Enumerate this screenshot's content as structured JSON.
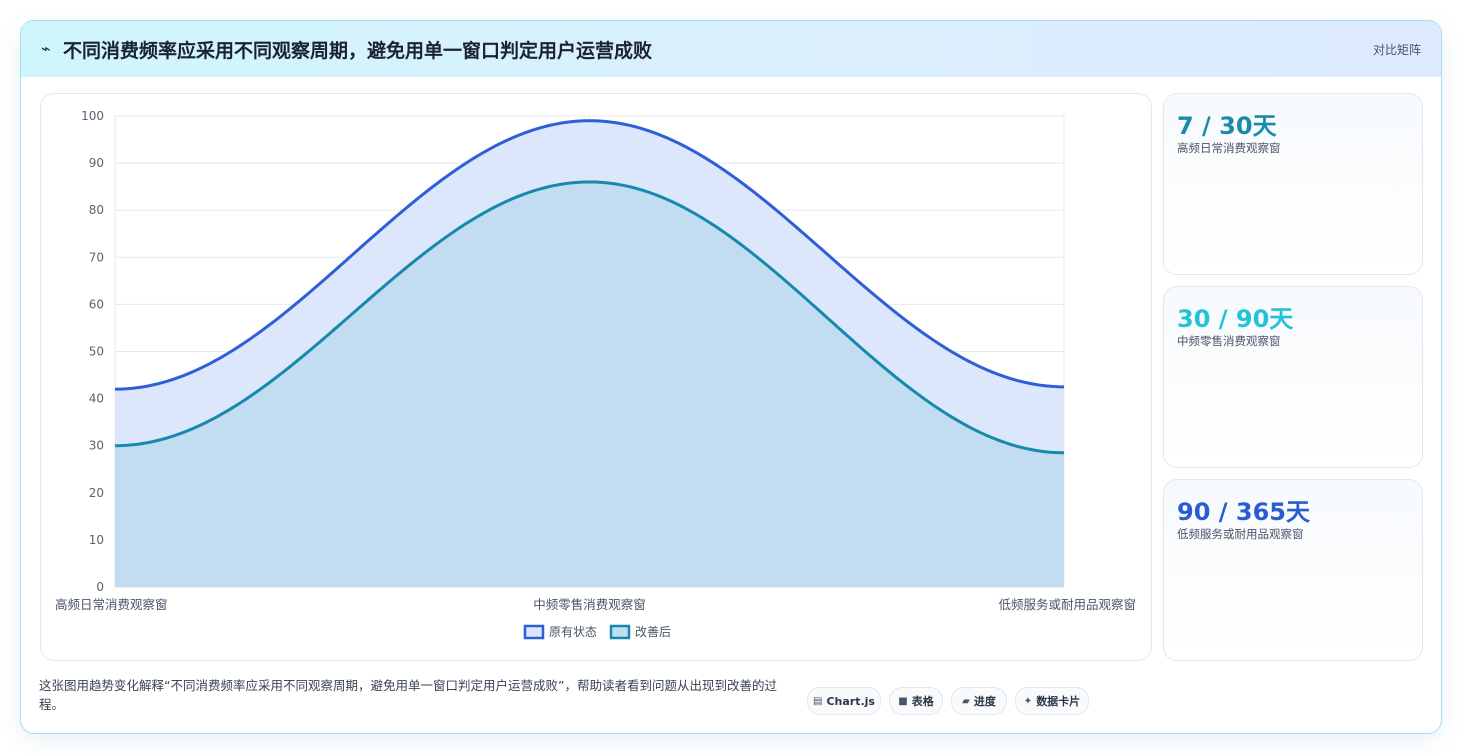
{
  "header": {
    "icon": "chart-trend-icon",
    "title": "不同消费频率应采用不同观察周期，避免用单一窗口判定用户运营成败",
    "right_label": "对比矩阵"
  },
  "chart_data": {
    "type": "area",
    "categories": [
      "高频日常消费观察窗",
      "中频零售消费观察窗",
      "低频服务或耐用品观察窗"
    ],
    "series": [
      {
        "name": "原有状态",
        "values": [
          42,
          99,
          42.5
        ],
        "color": "#2f5fd6",
        "fill": "#dde7fb"
      },
      {
        "name": "改善后",
        "values": [
          30,
          86,
          28.5
        ],
        "color": "#1689ad",
        "fill": "#c2dcf2"
      }
    ],
    "yticks": [
      0,
      10,
      20,
      30,
      40,
      50,
      60,
      70,
      80,
      90,
      100
    ],
    "ylim": [
      0,
      100
    ],
    "title": "",
    "xlabel": "",
    "ylabel": "",
    "grid": true,
    "legend": "bottom"
  },
  "stats": [
    {
      "value": "7 / 30天",
      "desc": "高频日常消费观察窗",
      "color": "#1a8ba8"
    },
    {
      "value": "30 / 90天",
      "desc": "中频零售消费观察窗",
      "color": "#22c3d9"
    },
    {
      "value": "90 / 365天",
      "desc": "低频服务或耐用品观察窗",
      "color": "#2b5bd1"
    }
  ],
  "footer": {
    "text": "这张图用趋势变化解释“不同消费频率应采用不同观察周期，避免用单一窗口判定用户运营成败”，帮助读者看到问题从出现到改善的过程。",
    "tags": [
      {
        "icon": "▤",
        "icon_name": "chart-icon",
        "label": "Chart.js"
      },
      {
        "icon": "■",
        "icon_name": "table-icon",
        "label": "表格"
      },
      {
        "icon": "▰",
        "icon_name": "progress-icon",
        "label": "进度"
      },
      {
        "icon": "✦",
        "icon_name": "sparkle-icon",
        "label": "数据卡片"
      }
    ]
  }
}
